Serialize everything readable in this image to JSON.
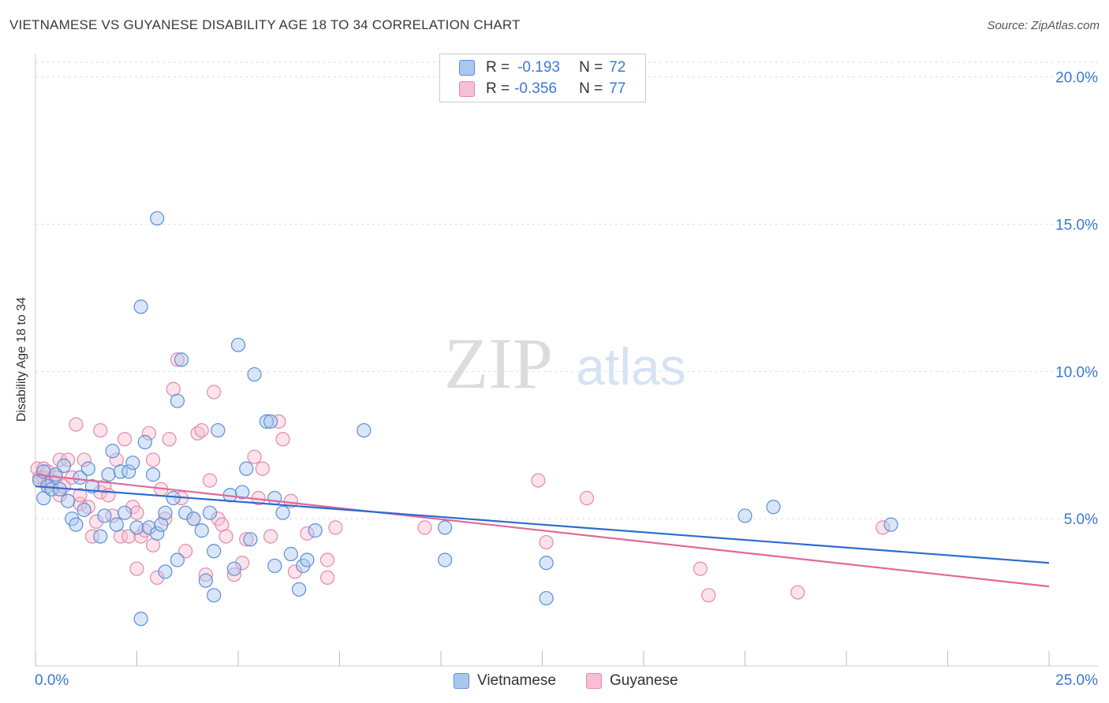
{
  "title": "VIETNAMESE VS GUYANESE DISABILITY AGE 18 TO 34 CORRELATION CHART",
  "source": "Source: ZipAtlas.com",
  "watermark": {
    "zip": "ZIP",
    "atlas": "atlas"
  },
  "legend": {
    "r_label": "R =",
    "n_label": "N =",
    "rows": [
      {
        "name": "Vietnamese",
        "r": "-0.193",
        "n": "72"
      },
      {
        "name": "Guyanese",
        "r": "-0.356",
        "n": "77"
      }
    ]
  },
  "colors": {
    "vietnamese_fill": "#a9c8f0",
    "vietnamese_stroke": "#5b8fd6",
    "vietnamese_line": "#2a6dcf",
    "guyanese_fill": "#f7bfd3",
    "guyanese_stroke": "#e48aaa",
    "guyanese_line": "#e0689a",
    "axis_text": "#3b78d0",
    "grid": "#dddddd"
  },
  "chart_data": {
    "type": "scatter",
    "title": "VIETNAMESE VS GUYANESE DISABILITY AGE 18 TO 34 CORRELATION CHART",
    "xlabel": "",
    "ylabel": "Disability Age 18 to 34",
    "xlim": [
      0,
      25
    ],
    "ylim": [
      0,
      20.5
    ],
    "x_tick_labels": [
      "0.0%",
      "25.0%"
    ],
    "y_ticks": [
      5,
      10,
      15,
      20
    ],
    "y_tick_labels": [
      "5.0%",
      "10.0%",
      "15.0%",
      "20.0%"
    ],
    "series": [
      {
        "name": "Vietnamese",
        "trend": {
          "x": [
            0,
            25
          ],
          "y": [
            6.1,
            3.5
          ]
        },
        "points": [
          [
            0.1,
            6.3
          ],
          [
            0.2,
            6.6
          ],
          [
            0.2,
            5.7
          ],
          [
            0.3,
            6.1
          ],
          [
            0.4,
            6.0
          ],
          [
            0.5,
            6.5
          ],
          [
            0.6,
            6.0
          ],
          [
            0.7,
            6.8
          ],
          [
            0.8,
            5.6
          ],
          [
            0.9,
            5.0
          ],
          [
            1.0,
            4.8
          ],
          [
            1.1,
            6.4
          ],
          [
            1.2,
            5.3
          ],
          [
            1.3,
            6.7
          ],
          [
            1.4,
            6.1
          ],
          [
            1.6,
            4.4
          ],
          [
            1.7,
            5.1
          ],
          [
            1.8,
            6.5
          ],
          [
            1.9,
            7.3
          ],
          [
            2.0,
            4.8
          ],
          [
            2.1,
            6.6
          ],
          [
            2.2,
            5.2
          ],
          [
            2.3,
            6.6
          ],
          [
            2.4,
            6.9
          ],
          [
            2.5,
            4.7
          ],
          [
            2.6,
            1.6
          ],
          [
            2.6,
            12.2
          ],
          [
            2.7,
            7.6
          ],
          [
            2.8,
            4.7
          ],
          [
            2.9,
            6.5
          ],
          [
            3.0,
            4.5
          ],
          [
            3.0,
            15.2
          ],
          [
            3.1,
            4.8
          ],
          [
            3.2,
            5.2
          ],
          [
            3.2,
            3.2
          ],
          [
            3.4,
            5.7
          ],
          [
            3.5,
            3.6
          ],
          [
            3.5,
            9.0
          ],
          [
            3.6,
            10.4
          ],
          [
            3.7,
            5.2
          ],
          [
            3.9,
            5.0
          ],
          [
            4.1,
            4.6
          ],
          [
            4.2,
            2.9
          ],
          [
            4.3,
            5.2
          ],
          [
            4.4,
            3.9
          ],
          [
            4.4,
            2.4
          ],
          [
            4.5,
            8.0
          ],
          [
            4.8,
            5.8
          ],
          [
            4.9,
            3.3
          ],
          [
            5.0,
            10.9
          ],
          [
            5.1,
            5.9
          ],
          [
            5.2,
            6.7
          ],
          [
            5.3,
            4.3
          ],
          [
            5.4,
            9.9
          ],
          [
            5.7,
            8.3
          ],
          [
            5.8,
            8.3
          ],
          [
            5.9,
            5.7
          ],
          [
            5.9,
            3.4
          ],
          [
            6.1,
            5.2
          ],
          [
            6.3,
            3.8
          ],
          [
            6.5,
            2.6
          ],
          [
            6.6,
            3.4
          ],
          [
            6.7,
            3.6
          ],
          [
            6.9,
            4.6
          ],
          [
            8.1,
            8.0
          ],
          [
            10.1,
            4.7
          ],
          [
            10.1,
            3.6
          ],
          [
            12.6,
            2.3
          ],
          [
            12.6,
            3.5
          ],
          [
            17.5,
            5.1
          ],
          [
            18.2,
            5.4
          ],
          [
            21.1,
            4.8
          ]
        ]
      },
      {
        "name": "Guyanese",
        "trend": {
          "x": [
            0,
            25
          ],
          "y": [
            6.5,
            2.7
          ]
        },
        "points": [
          [
            0.05,
            6.7
          ],
          [
            0.1,
            6.4
          ],
          [
            0.2,
            6.7
          ],
          [
            0.2,
            6.4
          ],
          [
            0.3,
            6.6
          ],
          [
            0.3,
            6.2
          ],
          [
            0.4,
            6.3
          ],
          [
            0.5,
            6.4
          ],
          [
            0.6,
            7.0
          ],
          [
            0.6,
            5.8
          ],
          [
            0.7,
            6.1
          ],
          [
            0.8,
            7.0
          ],
          [
            0.9,
            6.4
          ],
          [
            1.0,
            8.2
          ],
          [
            1.1,
            5.5
          ],
          [
            1.1,
            5.8
          ],
          [
            1.2,
            7.0
          ],
          [
            1.3,
            5.4
          ],
          [
            1.4,
            4.4
          ],
          [
            1.5,
            4.9
          ],
          [
            1.6,
            5.9
          ],
          [
            1.6,
            8.0
          ],
          [
            1.7,
            6.1
          ],
          [
            1.8,
            5.8
          ],
          [
            1.9,
            5.1
          ],
          [
            2.0,
            7.0
          ],
          [
            2.1,
            4.4
          ],
          [
            2.2,
            7.7
          ],
          [
            2.3,
            4.4
          ],
          [
            2.4,
            5.4
          ],
          [
            2.5,
            5.2
          ],
          [
            2.5,
            3.3
          ],
          [
            2.6,
            4.4
          ],
          [
            2.7,
            4.6
          ],
          [
            2.8,
            7.9
          ],
          [
            2.9,
            4.1
          ],
          [
            2.9,
            7.0
          ],
          [
            3.0,
            3.0
          ],
          [
            3.1,
            6.0
          ],
          [
            3.2,
            5.0
          ],
          [
            3.3,
            7.7
          ],
          [
            3.4,
            9.4
          ],
          [
            3.5,
            10.4
          ],
          [
            3.6,
            5.7
          ],
          [
            3.7,
            3.9
          ],
          [
            3.9,
            5.0
          ],
          [
            4.0,
            7.9
          ],
          [
            4.1,
            8.0
          ],
          [
            4.2,
            3.1
          ],
          [
            4.3,
            6.3
          ],
          [
            4.4,
            9.3
          ],
          [
            4.5,
            5.0
          ],
          [
            4.6,
            4.8
          ],
          [
            4.7,
            4.4
          ],
          [
            4.9,
            3.1
          ],
          [
            5.1,
            3.5
          ],
          [
            5.2,
            4.3
          ],
          [
            5.4,
            7.1
          ],
          [
            5.5,
            5.7
          ],
          [
            5.6,
            6.7
          ],
          [
            5.8,
            4.4
          ],
          [
            6.0,
            8.3
          ],
          [
            6.1,
            7.7
          ],
          [
            6.3,
            5.6
          ],
          [
            6.7,
            4.5
          ],
          [
            7.2,
            3.6
          ],
          [
            7.2,
            3.0
          ],
          [
            7.4,
            4.7
          ],
          [
            9.6,
            4.7
          ],
          [
            12.4,
            6.3
          ],
          [
            12.6,
            4.2
          ],
          [
            13.6,
            5.7
          ],
          [
            16.4,
            3.3
          ],
          [
            16.6,
            2.4
          ],
          [
            18.8,
            2.5
          ],
          [
            20.9,
            4.7
          ],
          [
            6.4,
            3.2
          ]
        ]
      }
    ]
  }
}
